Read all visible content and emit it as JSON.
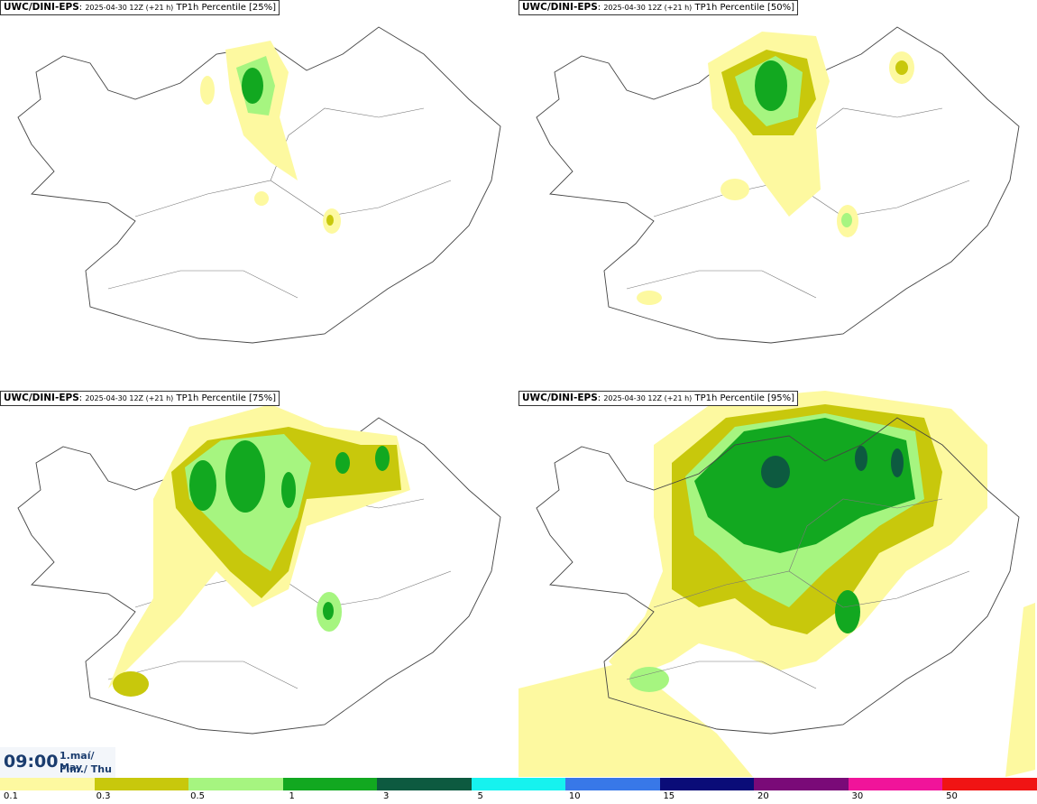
{
  "panels": [
    {
      "source": "UWC/DINI-EPS",
      "run": "2025-04-30 12Z (+21 h)",
      "product": "TP1h Percentile [25%]"
    },
    {
      "source": "UWC/DINI-EPS",
      "run": "2025-04-30 12Z (+21 h)",
      "product": "TP1h Percentile [50%]"
    },
    {
      "source": "UWC/DINI-EPS",
      "run": "2025-04-30 12Z (+21 h)",
      "product": "TP1h Percentile [75%]"
    },
    {
      "source": "UWC/DINI-EPS",
      "run": "2025-04-30 12Z (+21 h)",
      "product": "TP1h Percentile [95%]"
    }
  ],
  "time": {
    "clock": "09:00",
    "date_line1": "1.maí/ May",
    "date_line2": "Fim./ Thu"
  },
  "legend": {
    "ticks": [
      "0.1",
      "0.3",
      "0.5",
      "1",
      "3",
      "5",
      "10",
      "15",
      "20",
      "30",
      "50"
    ],
    "colors": [
      "#fdf9a0",
      "#c8c80c",
      "#a6f580",
      "#12a820",
      "#0d5a40",
      "#16f2ef",
      "#3878e8",
      "#0a0c78",
      "#7a0a78",
      "#f0149a",
      "#f01414"
    ]
  }
}
